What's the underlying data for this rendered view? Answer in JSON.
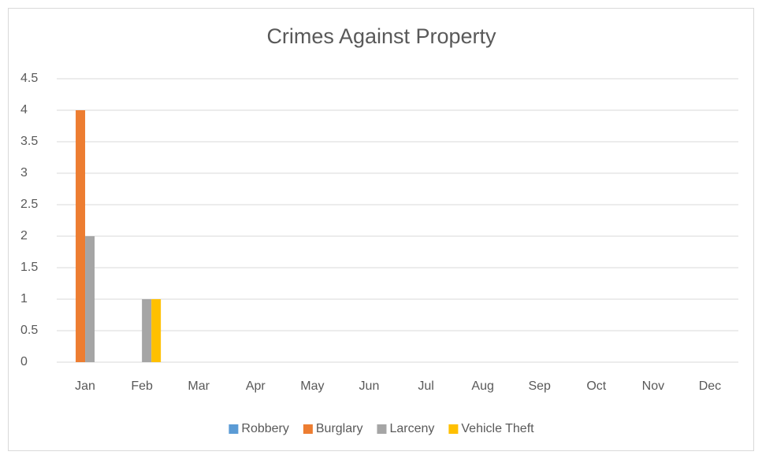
{
  "chart_data": {
    "type": "bar",
    "title": "Crimes Against Property",
    "categories": [
      "Jan",
      "Feb",
      "Mar",
      "Apr",
      "May",
      "Jun",
      "Jul",
      "Aug",
      "Sep",
      "Oct",
      "Nov",
      "Dec"
    ],
    "series": [
      {
        "name": "Robbery",
        "color": "#5b9bd5",
        "values": [
          0,
          0,
          0,
          0,
          0,
          0,
          0,
          0,
          0,
          0,
          0,
          0
        ]
      },
      {
        "name": "Burglary",
        "color": "#ed7d31",
        "values": [
          4,
          0,
          0,
          0,
          0,
          0,
          0,
          0,
          0,
          0,
          0,
          0
        ]
      },
      {
        "name": "Larceny",
        "color": "#a5a5a5",
        "values": [
          2,
          1,
          0,
          0,
          0,
          0,
          0,
          0,
          0,
          0,
          0,
          0
        ]
      },
      {
        "name": "Vehicle Theft",
        "color": "#ffc000",
        "values": [
          0,
          1,
          0,
          0,
          0,
          0,
          0,
          0,
          0,
          0,
          0,
          0
        ]
      }
    ],
    "ylim": [
      0,
      4.5
    ],
    "yticks": [
      0,
      0.5,
      1,
      1.5,
      2,
      2.5,
      3,
      3.5,
      4,
      4.5
    ],
    "grid": true,
    "legend": "bottom"
  }
}
